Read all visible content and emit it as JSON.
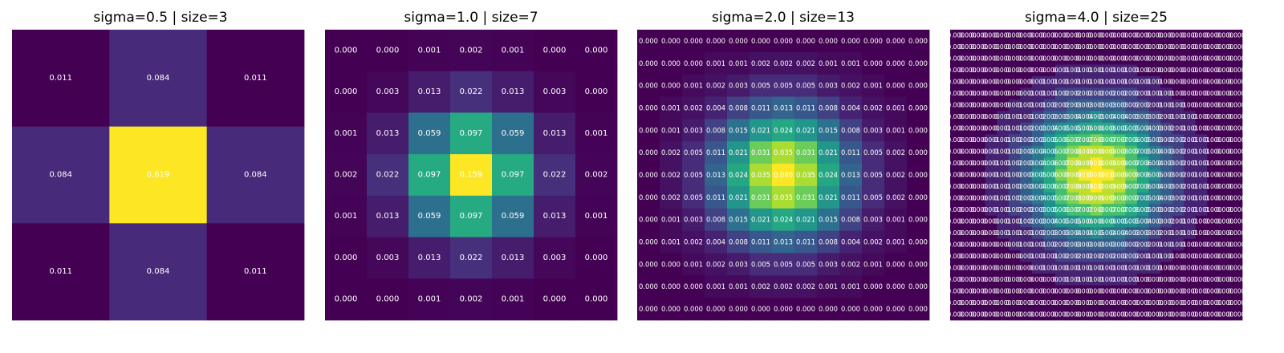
{
  "chart_data": [
    {
      "type": "heatmap",
      "title": "sigma=0.5 | size=3",
      "colormap": "viridis",
      "annotations": "shown",
      "values": [
        [
          0.011,
          0.084,
          0.011
        ],
        [
          0.084,
          0.619,
          0.084
        ],
        [
          0.011,
          0.084,
          0.011
        ]
      ]
    },
    {
      "type": "heatmap",
      "title": "sigma=1.0 | size=7",
      "colormap": "viridis",
      "annotations": "shown",
      "values": [
        [
          0.0,
          0.0,
          0.001,
          0.002,
          0.001,
          0.0,
          0.0
        ],
        [
          0.0,
          0.003,
          0.013,
          0.022,
          0.013,
          0.003,
          0.0
        ],
        [
          0.001,
          0.013,
          0.059,
          0.097,
          0.059,
          0.013,
          0.001
        ],
        [
          0.002,
          0.022,
          0.097,
          0.159,
          0.097,
          0.022,
          0.002
        ],
        [
          0.001,
          0.013,
          0.059,
          0.097,
          0.059,
          0.013,
          0.001
        ],
        [
          0.0,
          0.003,
          0.013,
          0.022,
          0.013,
          0.003,
          0.0
        ],
        [
          0.0,
          0.0,
          0.001,
          0.002,
          0.001,
          0.0,
          0.0
        ]
      ]
    },
    {
      "type": "heatmap",
      "title": "sigma=2.0 | size=13",
      "colormap": "viridis",
      "annotations": "shown",
      "values": [
        [
          0.0,
          0.0,
          0.0,
          0.0,
          0.0,
          0.0,
          0.0,
          0.0,
          0.0,
          0.0,
          0.0,
          0.0,
          0.0
        ],
        [
          0.0,
          0.0,
          0.0,
          0.001,
          0.001,
          0.002,
          0.002,
          0.002,
          0.001,
          0.001,
          0.0,
          0.0,
          0.0
        ],
        [
          0.0,
          0.0,
          0.001,
          0.002,
          0.003,
          0.005,
          0.005,
          0.005,
          0.003,
          0.002,
          0.001,
          0.0,
          0.0
        ],
        [
          0.0,
          0.001,
          0.002,
          0.004,
          0.008,
          0.011,
          0.013,
          0.011,
          0.008,
          0.004,
          0.002,
          0.001,
          0.0
        ],
        [
          0.0,
          0.001,
          0.003,
          0.008,
          0.015,
          0.021,
          0.024,
          0.021,
          0.015,
          0.008,
          0.003,
          0.001,
          0.0
        ],
        [
          0.0,
          0.002,
          0.005,
          0.011,
          0.021,
          0.031,
          0.035,
          0.031,
          0.021,
          0.011,
          0.005,
          0.002,
          0.0
        ],
        [
          0.0,
          0.002,
          0.005,
          0.013,
          0.024,
          0.035,
          0.04,
          0.035,
          0.024,
          0.013,
          0.005,
          0.002,
          0.0
        ],
        [
          0.0,
          0.002,
          0.005,
          0.011,
          0.021,
          0.031,
          0.035,
          0.031,
          0.021,
          0.011,
          0.005,
          0.002,
          0.0
        ],
        [
          0.0,
          0.001,
          0.003,
          0.008,
          0.015,
          0.021,
          0.024,
          0.021,
          0.015,
          0.008,
          0.003,
          0.001,
          0.0
        ],
        [
          0.0,
          0.001,
          0.002,
          0.004,
          0.008,
          0.011,
          0.013,
          0.011,
          0.008,
          0.004,
          0.002,
          0.001,
          0.0
        ],
        [
          0.0,
          0.0,
          0.001,
          0.002,
          0.003,
          0.005,
          0.005,
          0.005,
          0.003,
          0.002,
          0.001,
          0.0,
          0.0
        ],
        [
          0.0,
          0.0,
          0.0,
          0.001,
          0.001,
          0.002,
          0.002,
          0.002,
          0.001,
          0.001,
          0.0,
          0.0,
          0.0
        ],
        [
          0.0,
          0.0,
          0.0,
          0.0,
          0.0,
          0.0,
          0.0,
          0.0,
          0.0,
          0.0,
          0.0,
          0.0,
          0.0
        ]
      ]
    },
    {
      "type": "heatmap",
      "title": "sigma=4.0 | size=25",
      "colormap": "viridis",
      "annotations": "shown",
      "grid_size": 25,
      "sigma": 4.0,
      "value_format": "0.000"
    }
  ]
}
